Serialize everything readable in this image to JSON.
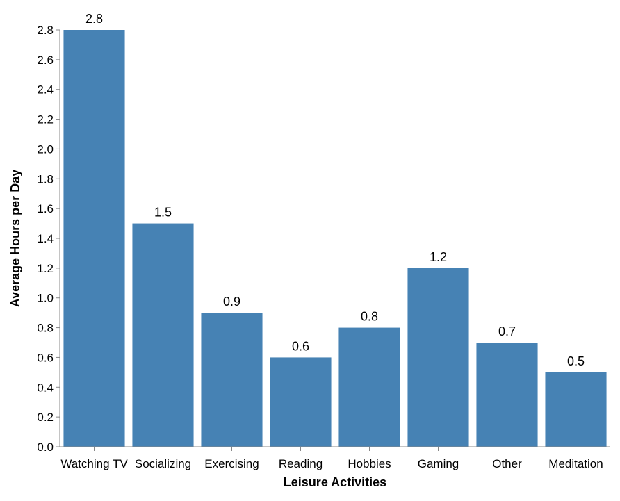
{
  "chart_data": {
    "type": "bar",
    "categories": [
      "Watching TV",
      "Socializing",
      "Exercising",
      "Reading",
      "Hobbies",
      "Gaming",
      "Other",
      "Meditation"
    ],
    "values": [
      2.8,
      1.5,
      0.9,
      0.6,
      0.8,
      1.2,
      0.7,
      0.5
    ],
    "data_labels": [
      "2.8",
      "1.5",
      "0.9",
      "0.6",
      "0.8",
      "1.2",
      "0.7",
      "0.5"
    ],
    "title": "",
    "xlabel": "Leisure Activities",
    "ylabel": "Average Hours per Day",
    "ylim": [
      0,
      2.8
    ],
    "yticks": [
      "0.0",
      "0.2",
      "0.4",
      "0.6",
      "0.8",
      "1.0",
      "1.2",
      "1.4",
      "1.6",
      "1.8",
      "2.0",
      "2.2",
      "2.4",
      "2.6",
      "2.8"
    ],
    "grid": false,
    "legend": "none",
    "bar_color": "#4682b4",
    "axis_color": "#888888"
  }
}
